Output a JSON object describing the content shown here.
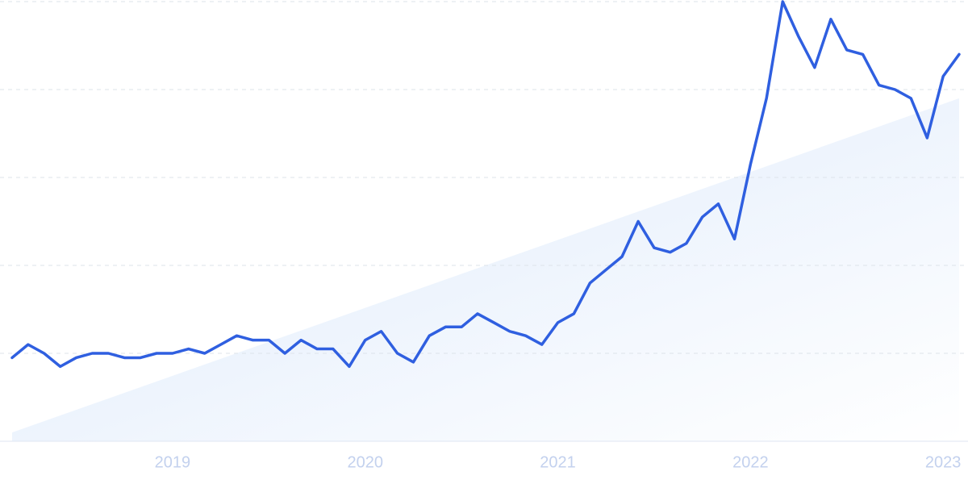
{
  "chart_data": {
    "type": "line",
    "x": [
      2018.167,
      2018.25,
      2018.333,
      2018.417,
      2018.5,
      2018.583,
      2018.667,
      2018.75,
      2018.833,
      2018.917,
      2019,
      2019.083,
      2019.167,
      2019.25,
      2019.333,
      2019.417,
      2019.5,
      2019.583,
      2019.667,
      2019.75,
      2019.833,
      2019.917,
      2020,
      2020.083,
      2020.167,
      2020.25,
      2020.333,
      2020.417,
      2020.5,
      2020.583,
      2020.667,
      2020.75,
      2020.833,
      2020.917,
      2021,
      2021.083,
      2021.167,
      2021.25,
      2021.333,
      2021.417,
      2021.5,
      2021.583,
      2021.667,
      2021.75,
      2021.833,
      2021.917,
      2022,
      2022.083,
      2022.167,
      2022.25,
      2022.333,
      2022.417,
      2022.5,
      2022.583,
      2022.667,
      2022.75,
      2022.833,
      2022.917,
      2023,
      2023.083
    ],
    "series": [
      {
        "color": "#2f5fe0",
        "values": [
          19,
          22,
          20,
          17,
          19,
          20,
          20,
          19,
          19,
          20,
          20,
          21,
          20,
          22,
          24,
          23,
          23,
          20,
          23,
          21,
          21,
          17,
          23,
          25,
          20,
          18,
          24,
          26,
          26,
          29,
          27,
          25,
          24,
          22,
          27,
          29,
          36,
          39,
          42,
          50,
          44,
          43,
          45,
          51,
          54,
          46,
          63,
          78,
          100,
          92,
          85,
          96,
          89,
          88,
          81,
          80,
          78,
          69,
          83,
          88
        ]
      }
    ],
    "trend": {
      "color": "#dce9fb",
      "values": [
        2,
        78
      ]
    },
    "xlim": [
      2018.167,
      2023.083
    ],
    "xticks": [
      2019,
      2020,
      2021,
      2022,
      2023
    ],
    "ylim": [
      0,
      100
    ],
    "yticks": [
      0,
      20,
      40,
      60,
      80,
      100
    ],
    "grid": true
  }
}
